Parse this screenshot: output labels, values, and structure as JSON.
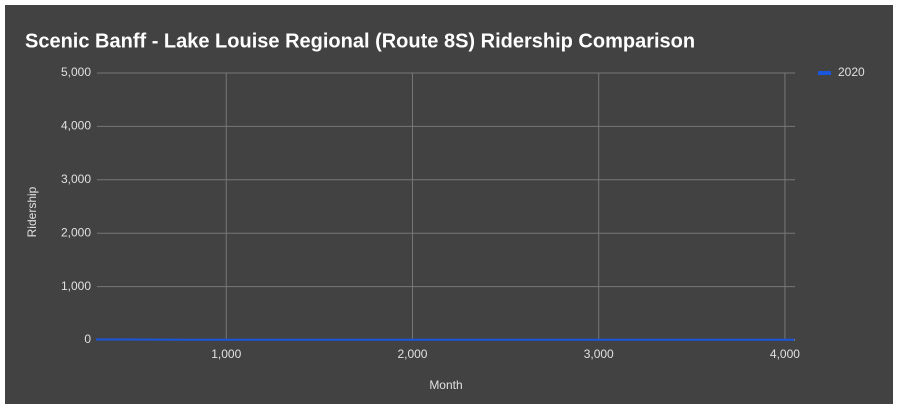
{
  "chart_data": {
    "type": "line",
    "title": "Scenic Banff - Lake Louise Regional (Route 8S) Ridership Comparison",
    "x_label": "Month",
    "y_label": "Ridership",
    "x": [
      300,
      800,
      4050
    ],
    "series": [
      {
        "name": "2020",
        "color": "#1a56db",
        "values": [
          10,
          5,
          5
        ]
      }
    ],
    "xlim": [
      306,
      4054
    ],
    "xticks": [
      {
        "value": 1000,
        "label": "1,000"
      },
      {
        "value": 2000,
        "label": "2,000"
      },
      {
        "value": 3000,
        "label": "3,000"
      },
      {
        "value": 4000,
        "label": "4,000"
      }
    ],
    "ylim": [
      0,
      5000
    ],
    "yticks": [
      0,
      {
        "value": 1000,
        "label": "1,000"
      },
      {
        "value": 2000,
        "label": "2,000"
      },
      {
        "value": 3000,
        "label": "3,000"
      },
      {
        "value": 4000,
        "label": "4,000"
      },
      {
        "value": 5000,
        "label": "5,000"
      }
    ],
    "grid": true,
    "legend": "right"
  }
}
